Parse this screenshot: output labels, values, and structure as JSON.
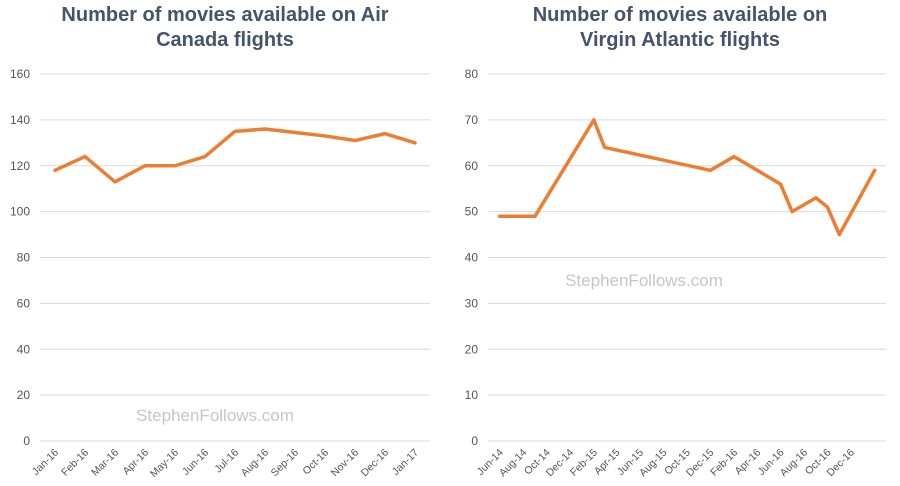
{
  "charts": [
    {
      "title_lines": [
        "Number of movies available on Air",
        "Canada flights"
      ],
      "watermark": "StephenFollows.com"
    },
    {
      "title_lines": [
        "Number of movies available on",
        "Virgin Atlantic flights"
      ],
      "watermark": "StephenFollows.com"
    }
  ],
  "chart_data": [
    {
      "type": "line",
      "title": "Number of movies available on Air Canada flights",
      "xlabel": "",
      "ylabel": "",
      "x": [
        "2016-01-01",
        "2016-02-01",
        "2016-03-01",
        "2016-04-01",
        "2016-05-01",
        "2016-06-01",
        "2016-07-01",
        "2016-08-01",
        "2016-09-01",
        "2016-10-01",
        "2016-11-01",
        "2016-12-01",
        "2017-01-01"
      ],
      "xticks": [
        "Jan-16",
        "Feb-16",
        "Mar-16",
        "Apr-16",
        "May-16",
        "Jun-16",
        "Jul-16",
        "Aug-16",
        "Sep-16",
        "Oct-16",
        "Nov-16",
        "Dec-16",
        "Jan-17"
      ],
      "series": [
        {
          "values": [
            118,
            124,
            113,
            120,
            120,
            124,
            135,
            136,
            134.5,
            133,
            131,
            134,
            130
          ]
        }
      ],
      "ylim": [
        0,
        160
      ],
      "yticks": [
        0,
        20,
        40,
        60,
        80,
        100,
        120,
        140,
        160
      ],
      "grid": true,
      "color": "#ed7d31"
    },
    {
      "type": "line",
      "title": "Number of movies available on Virgin Atlantic flights",
      "xlabel": "",
      "ylabel": "",
      "x": [
        "2014-06-01",
        "2014-08-01",
        "2014-09-01",
        "2015-02-01",
        "2015-03-01",
        "2015-12-01",
        "2016-02-01",
        "2016-06-01",
        "2016-07-01",
        "2016-09-01",
        "2016-10-01",
        "2016-11-01",
        "2017-02-01"
      ],
      "xticks": [
        "Jun-14",
        "Aug-14",
        "Oct-14",
        "Dec-14",
        "Feb-15",
        "Apr-15",
        "Jun-15",
        "Aug-15",
        "Oct-15",
        "Dec-15",
        "Feb-16",
        "Apr-16",
        "Jun-16",
        "Aug-16",
        "Oct-16",
        "Dec-16"
      ],
      "xtick_dates": [
        "2014-06-01",
        "2014-08-01",
        "2014-10-01",
        "2014-12-01",
        "2015-02-01",
        "2015-04-01",
        "2015-06-01",
        "2015-08-01",
        "2015-10-01",
        "2015-12-01",
        "2016-02-01",
        "2016-04-01",
        "2016-06-01",
        "2016-08-01",
        "2016-10-01",
        "2016-12-01"
      ],
      "series": [
        {
          "values": [
            49,
            49,
            49,
            70,
            64,
            59,
            62,
            56,
            50,
            53,
            51,
            45,
            59
          ]
        }
      ],
      "ylim": [
        0,
        80
      ],
      "yticks": [
        0,
        10,
        20,
        30,
        40,
        50,
        60,
        70,
        80
      ],
      "grid": true,
      "color": "#ed7d31"
    }
  ]
}
